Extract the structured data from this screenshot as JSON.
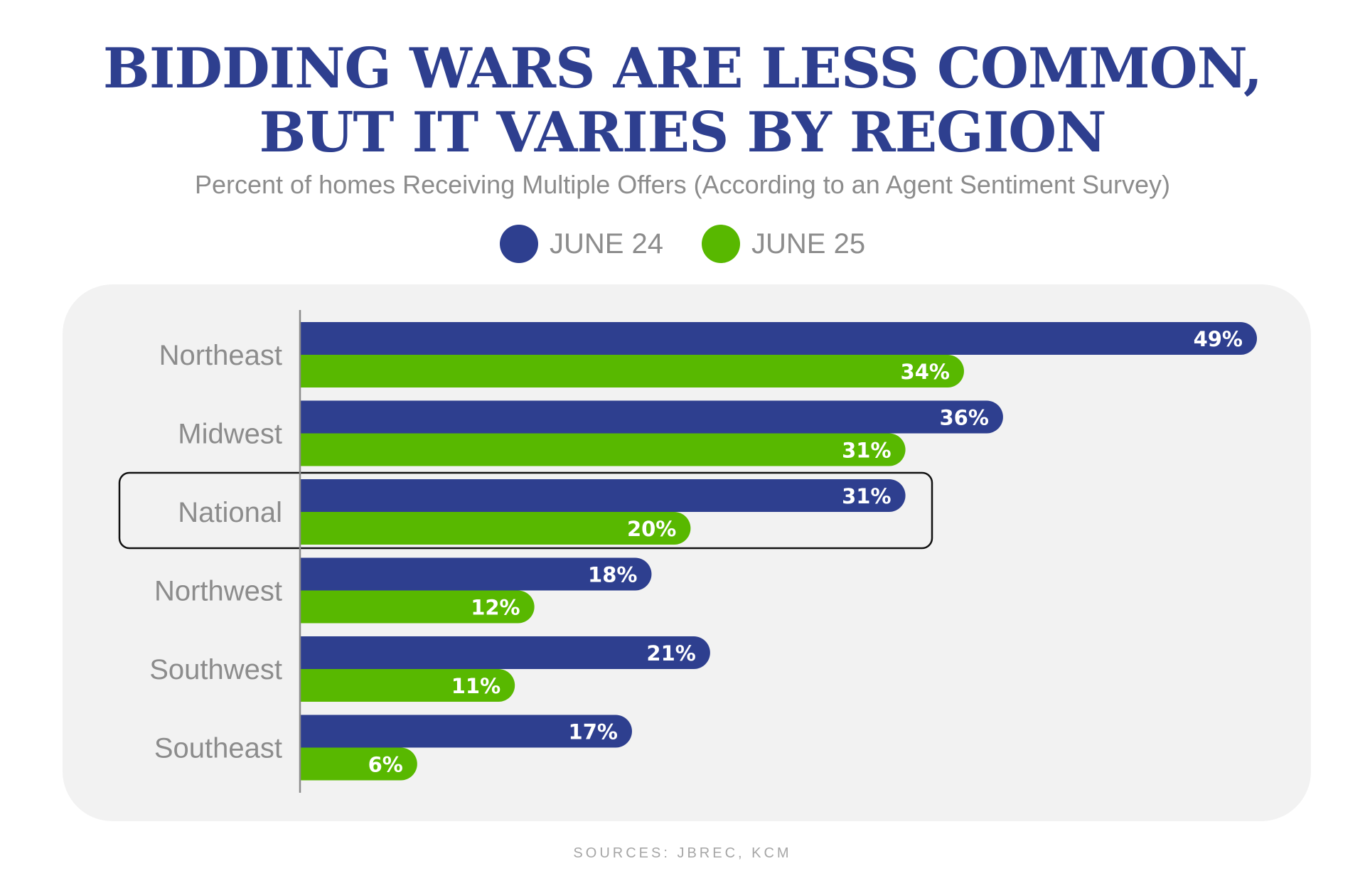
{
  "header": {
    "title_line1": "BIDDING WARS ARE LESS COMMON,",
    "title_line2": "BUT IT VARIES BY REGION",
    "subtitle": "Percent of homes Receiving Multiple Offers (According to an Agent Sentiment Survey)"
  },
  "legend": [
    {
      "label": "JUNE 24",
      "color": "#2e3f8f"
    },
    {
      "label": "JUNE 25",
      "color": "#58b800"
    }
  ],
  "footer": {
    "sources": "SOURCES: JBREC, KCM"
  },
  "chart_data": {
    "type": "bar",
    "orientation": "horizontal",
    "categories": [
      "Northeast",
      "Midwest",
      "National",
      "Northwest",
      "Southwest",
      "Southeast"
    ],
    "series": [
      {
        "name": "JUNE 24",
        "color": "#2e3f8f",
        "values": [
          49,
          36,
          31,
          18,
          21,
          17
        ],
        "labels": [
          "49%",
          "36%",
          "31%",
          "18%",
          "21%",
          "17%"
        ]
      },
      {
        "name": "JUNE 25",
        "color": "#58b800",
        "values": [
          34,
          31,
          20,
          12,
          11,
          6
        ],
        "labels": [
          "34%",
          "31%",
          "20%",
          "12%",
          "11%",
          "6%"
        ]
      }
    ],
    "highlight_category": "National",
    "xlim": [
      0,
      49
    ],
    "grid": false,
    "legend_position": "top-center",
    "data_labels": true
  }
}
